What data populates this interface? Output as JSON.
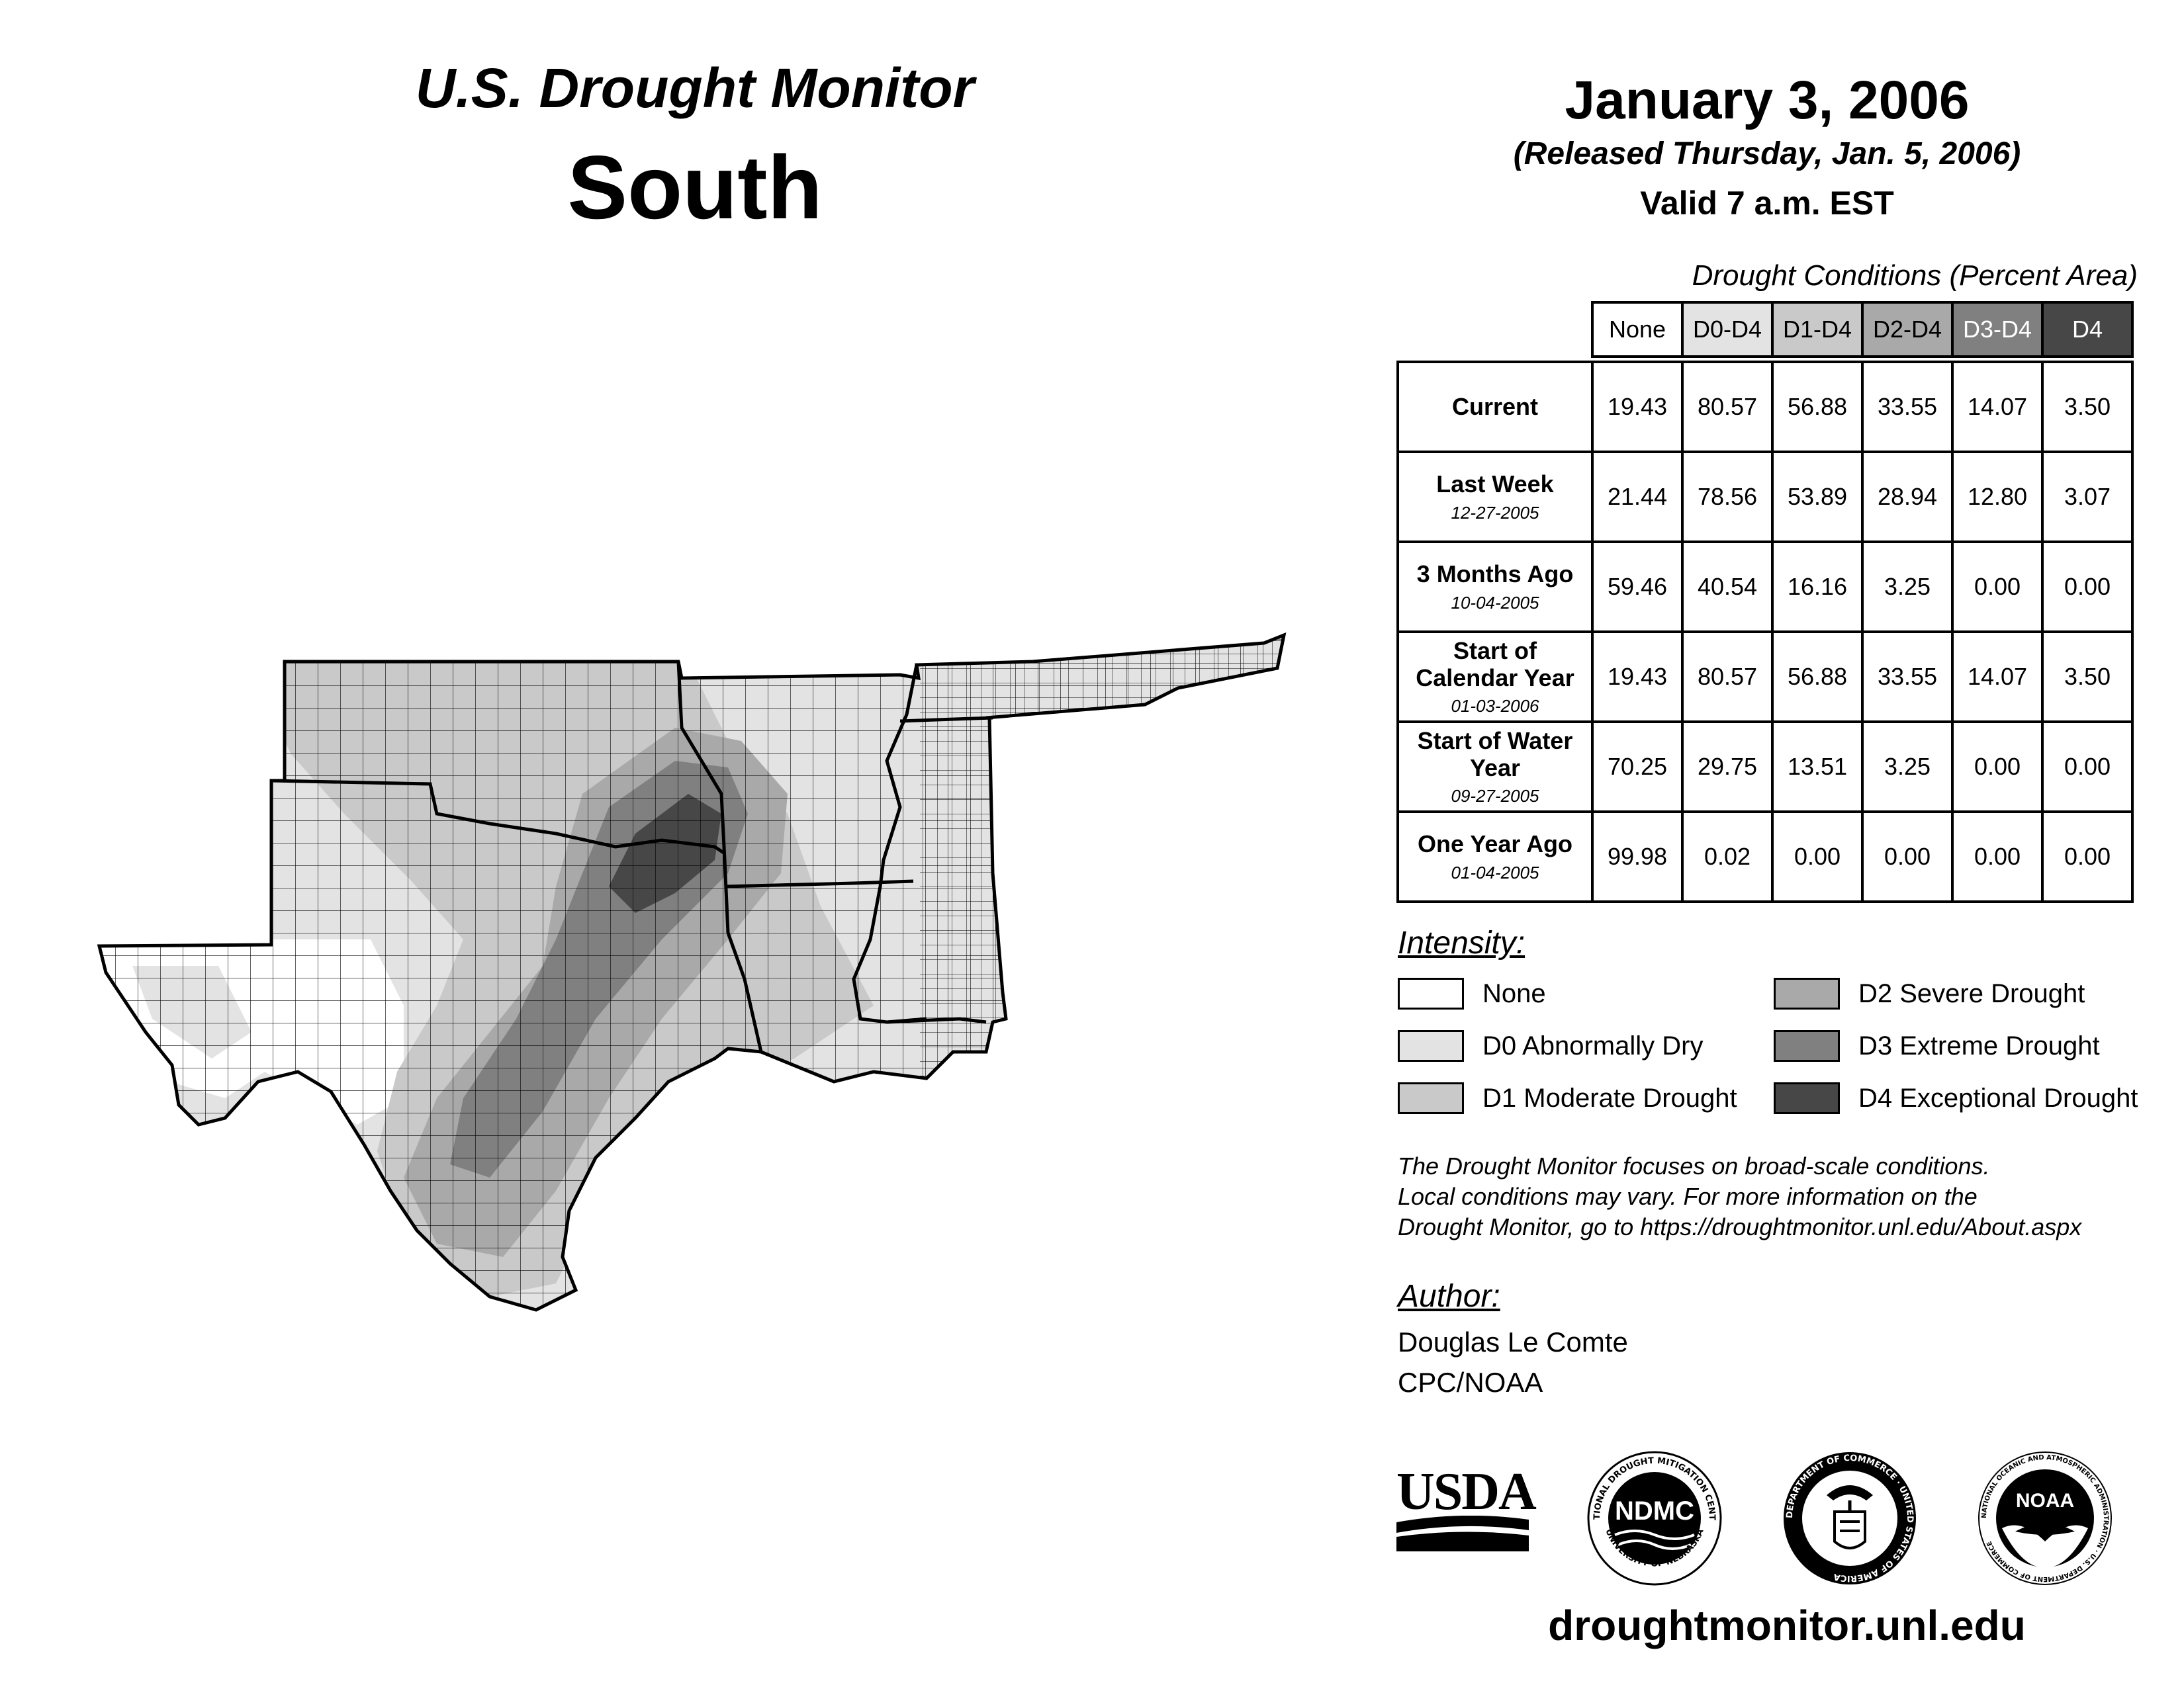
{
  "header": {
    "title": "U.S. Drought Monitor",
    "region": "South",
    "date": "January 3, 2006",
    "released": "(Released Thursday, Jan. 5, 2006)",
    "valid": "Valid 7 a.m. EST"
  },
  "table": {
    "caption": "Drought Conditions (Percent Area)",
    "columns": [
      "None",
      "D0-D4",
      "D1-D4",
      "D2-D4",
      "D3-D4",
      "D4"
    ],
    "column_colors": [
      "#ffffff",
      "#e3e3e3",
      "#c9c9c9",
      "#a9a9a9",
      "#808080",
      "#474747"
    ],
    "rows": [
      {
        "label": "Current",
        "date": "",
        "values": [
          "19.43",
          "80.57",
          "56.88",
          "33.55",
          "14.07",
          "3.50"
        ]
      },
      {
        "label": "Last Week",
        "date": "12-27-2005",
        "values": [
          "21.44",
          "78.56",
          "53.89",
          "28.94",
          "12.80",
          "3.07"
        ]
      },
      {
        "label": "3 Months Ago",
        "date": "10-04-2005",
        "values": [
          "59.46",
          "40.54",
          "16.16",
          "3.25",
          "0.00",
          "0.00"
        ]
      },
      {
        "label": "Start of Calendar Year",
        "date": "01-03-2006",
        "values": [
          "19.43",
          "80.57",
          "56.88",
          "33.55",
          "14.07",
          "3.50"
        ]
      },
      {
        "label": "Start of Water Year",
        "date": "09-27-2005",
        "values": [
          "70.25",
          "29.75",
          "13.51",
          "3.25",
          "0.00",
          "0.00"
        ]
      },
      {
        "label": "One Year Ago",
        "date": "01-04-2005",
        "values": [
          "99.98",
          "0.02",
          "0.00",
          "0.00",
          "0.00",
          "0.00"
        ]
      }
    ]
  },
  "legend": {
    "heading": "Intensity:",
    "items": [
      {
        "label": "None",
        "color": "#ffffff"
      },
      {
        "label": "D0 Abnormally Dry",
        "color": "#e3e3e3"
      },
      {
        "label": "D1 Moderate Drought",
        "color": "#c9c9c9"
      },
      {
        "label": "D2 Severe Drought",
        "color": "#a9a9a9"
      },
      {
        "label": "D3 Extreme Drought",
        "color": "#808080"
      },
      {
        "label": "D4 Exceptional Drought",
        "color": "#474747"
      }
    ]
  },
  "note": {
    "line1": "The Drought Monitor focuses on broad-scale conditions.",
    "line2": "Local conditions may vary. For more information on the",
    "line3": "Drought Monitor, go to https://droughtmonitor.unl.edu/About.aspx"
  },
  "author": {
    "heading": "Author:",
    "name": "Douglas Le Comte",
    "org": "CPC/NOAA"
  },
  "logos": {
    "usda": "USDA",
    "ndmc": "NDMC",
    "ndmc_ring_top": "NATIONAL DROUGHT MITIGATION CENTER",
    "ndmc_ring_bottom": "UNIVERSITY OF NEBRASKA",
    "doc_ring": "DEPARTMENT OF COMMERCE · UNITED STATES OF AMERICA",
    "noaa": "NOAA",
    "noaa_ring": "NATIONAL OCEANIC AND ATMOSPHERIC ADMINISTRATION · U.S. DEPARTMENT OF COMMERCE"
  },
  "website": "droughtmonitor.unl.edu"
}
